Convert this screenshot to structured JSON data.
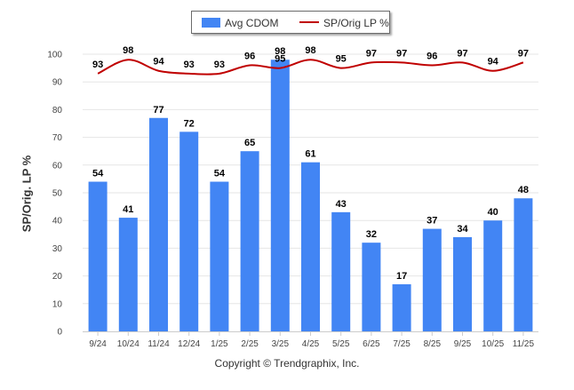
{
  "legend": {
    "bar_label": "Avg CDOM",
    "line_label": "SP/Orig LP %"
  },
  "copyright": "Copyright © Trendgraphix, Inc.",
  "chart_data": {
    "type": "bar",
    "categories": [
      "9/24",
      "10/24",
      "11/24",
      "12/24",
      "1/25",
      "2/25",
      "3/25",
      "4/25",
      "5/25",
      "6/25",
      "7/25",
      "8/25",
      "9/25",
      "10/25",
      "11/25"
    ],
    "series": [
      {
        "name": "Avg CDOM",
        "type": "bar",
        "values": [
          54,
          41,
          77,
          72,
          54,
          65,
          98,
          61,
          43,
          32,
          17,
          37,
          34,
          40,
          48
        ],
        "color": "#4285f4"
      },
      {
        "name": "SP/Orig LP %",
        "type": "line",
        "values": [
          93,
          98,
          94,
          93,
          93,
          96,
          95,
          98,
          95,
          97,
          97,
          96,
          97,
          94,
          97
        ],
        "color": "#c00000"
      }
    ],
    "ylabel": "SP/Orig. LP %",
    "xlabel": "",
    "ylim": [
      0,
      100
    ],
    "yticks": [
      0,
      10,
      20,
      30,
      40,
      50,
      60,
      70,
      80,
      90,
      100
    ],
    "grid": true,
    "legend_position": "top-center"
  }
}
